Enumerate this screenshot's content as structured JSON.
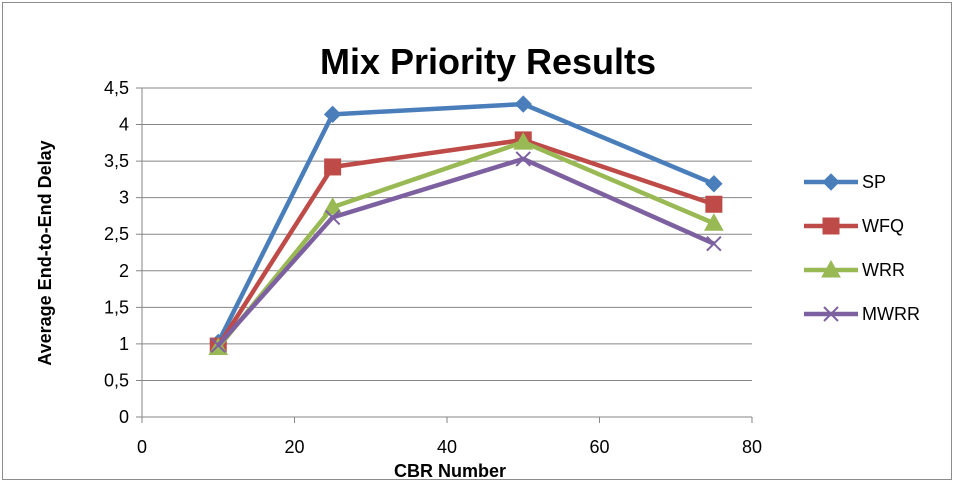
{
  "chart_data": {
    "type": "line",
    "title": "Mix Priority Results",
    "xlabel": "CBR Number",
    "ylabel": "Average End-to-End Delay",
    "xlim": [
      0,
      80
    ],
    "ylim": [
      0,
      4.5
    ],
    "x_ticks": [
      "0",
      "20",
      "40",
      "60",
      "80"
    ],
    "x_tick_values": [
      0,
      20,
      40,
      60,
      80
    ],
    "y_ticks": [
      "0",
      "0,5",
      "1",
      "1,5",
      "2",
      "2,5",
      "3",
      "3,5",
      "4",
      "4,5"
    ],
    "y_tick_values": [
      0,
      0.5,
      1,
      1.5,
      2,
      2.5,
      3,
      3.5,
      4,
      4.5
    ],
    "grid": true,
    "legend_position": "right",
    "x": [
      10,
      25,
      50,
      75
    ],
    "series": [
      {
        "name": "SP",
        "values": [
          1.02,
          4.14,
          4.28,
          3.19
        ],
        "color": "#4a7ebb",
        "marker": "diamond"
      },
      {
        "name": "WFQ",
        "values": [
          0.97,
          3.42,
          3.79,
          2.91
        ],
        "color": "#be4b48",
        "marker": "square"
      },
      {
        "name": "WRR",
        "values": [
          0.95,
          2.87,
          3.76,
          2.65
        ],
        "color": "#98b954",
        "marker": "triangle"
      },
      {
        "name": "MWRR",
        "values": [
          0.98,
          2.73,
          3.53,
          2.37
        ],
        "color": "#7d60a0",
        "marker": "x"
      }
    ]
  }
}
